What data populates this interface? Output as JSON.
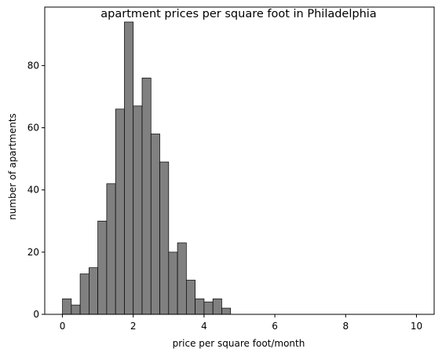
{
  "chart_data": {
    "type": "bar",
    "title": "apartment prices per square foot in Philadelphia",
    "xlabel": "price per square foot/month",
    "ylabel": "number of apartments",
    "xlim": [
      -0.5,
      10.5
    ],
    "ylim": [
      0,
      98.8
    ],
    "xticks": [
      0,
      2,
      4,
      6,
      8,
      10
    ],
    "yticks": [
      0,
      20,
      40,
      60,
      80
    ],
    "bin_width": 0.25,
    "bin_start": 0,
    "counts": [
      5,
      3,
      13,
      15,
      30,
      42,
      66,
      94,
      67,
      76,
      58,
      49,
      20,
      23,
      11,
      5,
      4,
      5,
      2,
      0,
      0,
      0,
      0,
      0,
      0,
      0,
      0,
      0,
      0,
      0,
      0,
      0,
      0,
      0,
      0,
      0,
      0,
      0,
      0,
      0,
      0,
      0,
      0,
      0,
      0,
      0,
      0,
      0,
      0,
      0
    ],
    "counts_note": "",
    "bar_color": "#808080",
    "bar_edge_color": "#000000",
    "grid": false
  }
}
